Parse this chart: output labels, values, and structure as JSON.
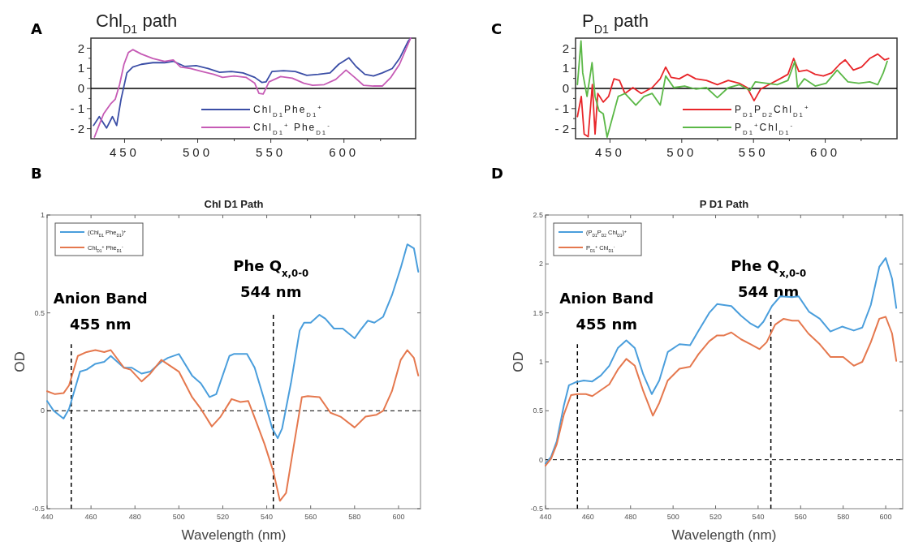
{
  "chart_data": [
    {
      "type": "line",
      "title": "Chl$_{D1}$ path",
      "annotations": [
        "A"
      ],
      "xlim": [
        427,
        649
      ],
      "ylim": [
        -2.5,
        2.5
      ],
      "xticks": [
        450,
        {
          "value": 475,
          "label": null
        },
        500,
        {
          "value": 525,
          "label": null
        },
        550,
        {
          "value": 575,
          "label": null
        },
        600,
        {
          "value": 625,
          "label": null
        }
      ],
      "yticks": [
        {
          "value": -2,
          "label": "- 2"
        },
        {
          "value": -1.5,
          "label": null
        },
        {
          "value": -1,
          "label": "- 1"
        },
        {
          "value": -0.5,
          "label": null
        },
        0,
        {
          "value": 0.5,
          "label": null
        },
        1,
        {
          "value": 1.5,
          "label": null
        },
        2
      ],
      "legend": "bottom right",
      "ref_lines": [
        {
          "axis": "y",
          "value": 0,
          "color": "#000000",
          "line_style": "solid"
        }
      ],
      "series": [
        {
          "name": "Chl$_{D1}$Phe$_{D1}$$^{+}$",
          "color": "#3b4ea6",
          "x": [
            428.8,
            432.7,
            437.7,
            441.7,
            444.6,
            447.6,
            451.6,
            455.6,
            461.5,
            469.4,
            477.4,
            483.3,
            491.3,
            499,
            507,
            515,
            523,
            531,
            539,
            543.8,
            546.8,
            550.8,
            558.7,
            566.7,
            574.6,
            582.5,
            590.5,
            596.4,
            603.4,
            608.3,
            614.3,
            620.2,
            626.2,
            633,
            638,
            644,
            645.6
          ],
          "values": [
            -1.84,
            -1.4,
            -1.97,
            -1.4,
            -1.84,
            -0.54,
            0.77,
            1.06,
            1.2,
            1.28,
            1.28,
            1.35,
            1.09,
            1.13,
            0.99,
            0.8,
            0.84,
            0.77,
            0.55,
            0.3,
            0.33,
            0.84,
            0.88,
            0.84,
            0.65,
            0.7,
            0.77,
            1.2,
            1.52,
            1.09,
            0.7,
            0.62,
            0.77,
            0.99,
            1.49,
            2.36,
            2.5
          ]
        },
        {
          "name": "Chl$_{D1}$$^{+}$ Phe$_{D1}$$^{-}$",
          "color": "#c65bb5",
          "x": [
            429.4,
            431.7,
            435.7,
            440.7,
            443.6,
            446.6,
            449.6,
            452.6,
            455.6,
            461.5,
            469.4,
            477.4,
            483.3,
            488.3,
            495,
            503,
            511,
            517,
            525,
            533,
            539,
            541.9,
            544.8,
            548.8,
            556.7,
            564.7,
            572.6,
            578.6,
            586.5,
            594.4,
            601.4,
            607.3,
            613.3,
            620.2,
            626.2,
            632.1,
            638,
            645.6
          ],
          "values": [
            -2.42,
            -1.99,
            -1.26,
            -0.75,
            -0.54,
            0.19,
            1.2,
            1.78,
            1.93,
            1.71,
            1.49,
            1.35,
            1.42,
            1.06,
            0.99,
            0.84,
            0.7,
            0.55,
            0.62,
            0.55,
            0.26,
            -0.25,
            -0.28,
            0.33,
            0.59,
            0.51,
            0.26,
            0.16,
            0.19,
            0.45,
            0.91,
            0.55,
            0.16,
            0.12,
            0.12,
            0.55,
            1.2,
            2.5
          ]
        }
      ]
    },
    {
      "type": "line",
      "title": "P$_{D1}$ path",
      "annotations": [
        "C"
      ],
      "xlim": [
        426,
        650
      ],
      "ylim": [
        -2.5,
        2.5
      ],
      "xticks": [
        450,
        {
          "value": 475,
          "label": null
        },
        500,
        {
          "value": 525,
          "label": null
        },
        550,
        {
          "value": 575,
          "label": null
        },
        600,
        {
          "value": 625,
          "label": null
        }
      ],
      "yticks": [
        {
          "value": -2,
          "label": "- 2"
        },
        {
          "value": -1.5,
          "label": null
        },
        {
          "value": -1,
          "label": "- 1"
        },
        {
          "value": -0.5,
          "label": null
        },
        0,
        {
          "value": 0.5,
          "label": null
        },
        1,
        {
          "value": 1.5,
          "label": null
        },
        2
      ],
      "legend": "bottom right",
      "ref_lines": [
        {
          "axis": "y",
          "value": 0,
          "color": "#000000",
          "line_style": "solid"
        }
      ],
      "series": [
        {
          "name": "P$_{D1}$P$_{D2}$Chl$_{D1}$$^{+}$",
          "color": "#e8262a",
          "x": [
            427.3,
            430,
            432,
            434.8,
            437.7,
            439.6,
            441.5,
            445.3,
            449,
            452.8,
            456.6,
            460.4,
            466,
            471.8,
            479.4,
            485,
            488.8,
            492.6,
            498.3,
            504,
            509.7,
            517.2,
            524.8,
            532.4,
            540,
            545.6,
            550.4,
            555,
            560.8,
            568.4,
            574,
            578,
            581.6,
            587.3,
            593,
            598.7,
            604.4,
            610,
            613.9,
            619.6,
            625.3,
            631,
            636.6,
            641.3,
            644.2
          ],
          "values": [
            -1.4,
            -0.4,
            -2.27,
            -2.4,
            0.2,
            -2.27,
            -0.25,
            -0.68,
            -0.4,
            0.48,
            0.4,
            -0.25,
            0.04,
            -0.25,
            0.04,
            0.48,
            1.06,
            0.55,
            0.48,
            0.7,
            0.48,
            0.4,
            0.19,
            0.4,
            0.26,
            0.04,
            -0.61,
            -0.03,
            0.19,
            0.48,
            0.7,
            1.49,
            0.84,
            0.91,
            0.7,
            0.62,
            0.77,
            1.2,
            1.42,
            0.91,
            1.06,
            1.49,
            1.71,
            1.42,
            1.49
          ]
        },
        {
          "name": "P$_{D1}$$^{+}$Chl$_{D1}$$^{-}$",
          "color": "#5bb847",
          "x": [
            427.3,
            429.8,
            431,
            434,
            437.5,
            439.6,
            442.4,
            445.3,
            448,
            451.9,
            455.7,
            460.4,
            468,
            473.7,
            479.4,
            485,
            488.8,
            494.5,
            502,
            509.7,
            517.2,
            524.8,
            532.4,
            540,
            547.5,
            551.3,
            558.9,
            566.5,
            574,
            578.8,
            580.7,
            585.4,
            593,
            600.6,
            608.3,
            615.8,
            623.4,
            631,
            636.6,
            640.4,
            643.2
          ],
          "values": [
            0.19,
            2.36,
            0.77,
            -0.4,
            1.28,
            -0.4,
            -1.12,
            -1.26,
            -2.42,
            -1.4,
            -0.4,
            -0.25,
            -0.83,
            -0.4,
            -0.25,
            -0.83,
            0.62,
            0.04,
            0.12,
            -0.03,
            0.04,
            -0.46,
            0.04,
            0.19,
            -0.1,
            0.33,
            0.26,
            0.19,
            0.4,
            1.35,
            0.04,
            0.48,
            0.12,
            0.26,
            0.91,
            0.33,
            0.26,
            0.33,
            0.19,
            0.77,
            1.35
          ]
        }
      ]
    },
    {
      "type": "line",
      "title": "Chl D1 Path",
      "annotations": [
        "B"
      ],
      "xlabel": "Wavelength (nm)",
      "ylabel": "OD",
      "xlim": [
        440,
        610
      ],
      "ylim": [
        -0.5,
        1
      ],
      "xticks": [
        440,
        460,
        480,
        500,
        520,
        540,
        560,
        580,
        600
      ],
      "yticks": [
        -0.5,
        0,
        0.5,
        1
      ],
      "legend": "top left",
      "ref_lines": [
        {
          "axis": "y",
          "value": 0,
          "color": "#000000",
          "line_style": "dashed"
        },
        {
          "axis": "x",
          "value": 451,
          "label": "Anion Band 455 nm",
          "color": "#000000",
          "line_style": "dashed"
        },
        {
          "axis": "x",
          "value": 543,
          "label": "Phe Q$_{x,0-0}$ 544 nm",
          "color": "#000000",
          "line_style": "dashed"
        }
      ],
      "series": [
        {
          "name": "(Chl$_{D1}$ Phe$_{D1}$)$^{+}$",
          "color": "#4a9edc",
          "x": [
            440,
            443,
            447.5,
            450,
            455,
            458,
            462,
            466,
            469,
            475,
            478.6,
            483,
            487,
            492,
            495,
            500,
            506,
            510,
            514,
            517,
            523,
            525,
            528,
            531,
            534.5,
            538.5,
            542.5,
            545,
            547,
            551,
            555,
            557,
            560,
            564,
            566.7,
            570.6,
            574.6,
            580,
            582.5,
            586,
            589,
            593,
            597,
            601,
            604,
            607,
            609
          ],
          "values": [
            0.05,
            0,
            -0.04,
            0.01,
            0.2,
            0.21,
            0.24,
            0.25,
            0.28,
            0.22,
            0.22,
            0.19,
            0.2,
            0.25,
            0.27,
            0.29,
            0.18,
            0.14,
            0.07,
            0.085,
            0.28,
            0.29,
            0.29,
            0.29,
            0.22,
            0.07,
            -0.09,
            -0.14,
            -0.09,
            0.14,
            0.41,
            0.45,
            0.45,
            0.49,
            0.47,
            0.42,
            0.42,
            0.37,
            0.41,
            0.46,
            0.45,
            0.48,
            0.59,
            0.73,
            0.85,
            0.83,
            0.71
          ]
        },
        {
          "name": "Chl$_{D1}$$^{+}$ Phe$_{D1}$$^{-}$",
          "color": "#e5784e",
          "x": [
            440,
            443.6,
            447.5,
            450,
            454,
            458,
            462,
            466,
            469,
            475,
            478,
            483,
            487,
            492,
            496,
            500,
            506,
            510,
            515,
            519,
            524,
            528,
            531.6,
            535,
            539,
            543,
            546,
            548.8,
            552,
            556,
            558.7,
            564,
            569,
            573.6,
            580,
            585,
            590,
            593,
            597,
            601,
            604,
            607,
            609
          ],
          "values": [
            0.1,
            0.085,
            0.09,
            0.13,
            0.28,
            0.3,
            0.31,
            0.3,
            0.31,
            0.22,
            0.21,
            0.15,
            0.19,
            0.26,
            0.23,
            0.2,
            0.07,
            0.01,
            -0.08,
            -0.03,
            0.06,
            0.045,
            0.05,
            -0.05,
            -0.17,
            -0.31,
            -0.46,
            -0.42,
            -0.2,
            0.07,
            0.075,
            0.07,
            -0.01,
            -0.03,
            -0.085,
            -0.03,
            -0.02,
            0,
            0.1,
            0.26,
            0.31,
            0.27,
            0.18
          ]
        }
      ]
    },
    {
      "type": "line",
      "title": "P D1 Path",
      "annotations": [
        "D"
      ],
      "xlabel": "Wavelength (nm)",
      "ylabel": "OD",
      "xlim": [
        440,
        608
      ],
      "ylim": [
        -0.5,
        2.5
      ],
      "xticks": [
        440,
        460,
        480,
        500,
        520,
        540,
        560,
        580,
        600
      ],
      "yticks": [
        -0.5,
        0,
        0.5,
        1,
        1.5,
        2,
        2.5
      ],
      "legend": "top left",
      "ref_lines": [
        {
          "axis": "y",
          "value": 0,
          "color": "#000000",
          "line_style": "dashed"
        },
        {
          "axis": "x",
          "value": 455,
          "label": "Anion Band 455 nm",
          "color": "#000000",
          "line_style": "dashed"
        },
        {
          "axis": "x",
          "value": 546,
          "label": "Phe Q$_{x,0-0}$ 544 nm",
          "color": "#000000",
          "line_style": "dashed"
        }
      ],
      "series": [
        {
          "name": "(P$_{D1}$P$_{D2}$ Chl$_{D1}$)$^{+}$",
          "color": "#4a9edc",
          "x": [
            440,
            442.6,
            445.3,
            448.6,
            451,
            454,
            458,
            462,
            466,
            470,
            474,
            478,
            482,
            486,
            490,
            493.5,
            497.5,
            503,
            508,
            512,
            517,
            520.7,
            524,
            527.4,
            532,
            536.5,
            540,
            542.5,
            546.5,
            550.5,
            556,
            559,
            564,
            569,
            574,
            579.5,
            585,
            589,
            593,
            597,
            600,
            603,
            605
          ],
          "values": [
            -0.04,
            0.03,
            0.19,
            0.55,
            0.76,
            0.79,
            0.81,
            0.8,
            0.86,
            0.96,
            1.14,
            1.22,
            1.14,
            0.87,
            0.67,
            0.81,
            1.1,
            1.18,
            1.17,
            1.32,
            1.5,
            1.59,
            1.58,
            1.57,
            1.47,
            1.39,
            1.35,
            1.41,
            1.57,
            1.67,
            1.66,
            1.67,
            1.51,
            1.44,
            1.31,
            1.36,
            1.32,
            1.35,
            1.58,
            1.97,
            2.06,
            1.85,
            1.55
          ]
        },
        {
          "name": "P$_{D1}$$^{+}$ Chl$_{D1}$$^{-}$",
          "color": "#e5784e",
          "x": [
            440,
            442.6,
            445.3,
            448.6,
            452,
            455,
            459,
            462,
            466,
            470,
            474,
            478,
            482,
            486,
            490.5,
            493.5,
            497.5,
            503,
            508,
            512,
            517,
            520.7,
            524,
            527.4,
            532,
            536.5,
            540.7,
            544,
            548,
            552,
            556,
            559,
            563.6,
            569,
            574,
            580,
            585,
            589,
            593,
            597,
            600,
            603,
            605
          ],
          "values": [
            -0.06,
            0.01,
            0.16,
            0.46,
            0.66,
            0.67,
            0.67,
            0.65,
            0.71,
            0.77,
            0.92,
            1.03,
            0.96,
            0.7,
            0.45,
            0.58,
            0.81,
            0.93,
            0.95,
            1.08,
            1.21,
            1.27,
            1.27,
            1.3,
            1.23,
            1.18,
            1.13,
            1.2,
            1.38,
            1.44,
            1.42,
            1.42,
            1.29,
            1.18,
            1.05,
            1.05,
            0.96,
            1,
            1.2,
            1.44,
            1.46,
            1.29,
            1.01
          ]
        }
      ]
    }
  ]
}
